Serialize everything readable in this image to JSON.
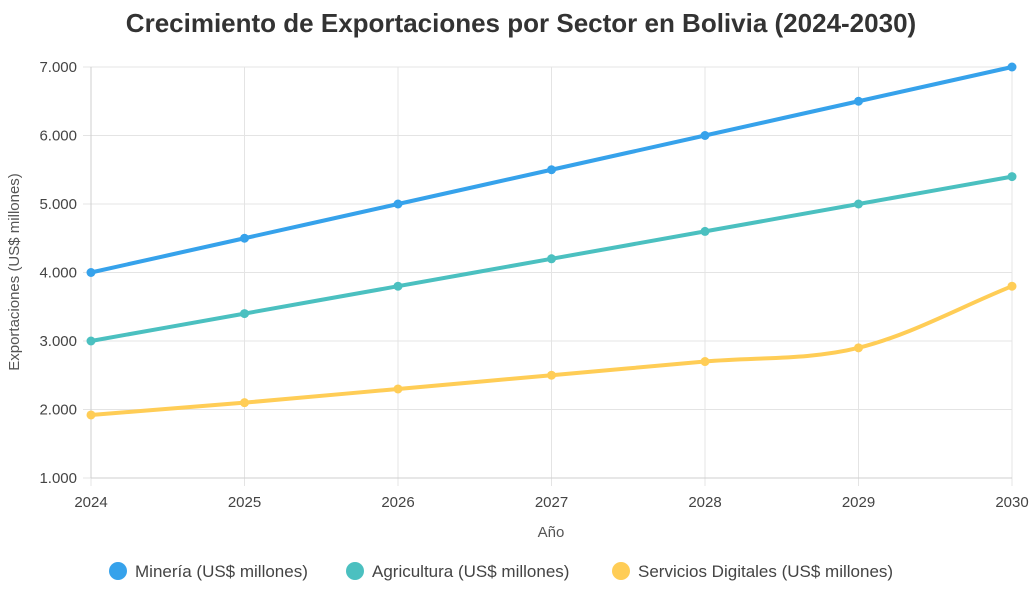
{
  "chart_data": {
    "type": "line",
    "title": "Crecimiento de Exportaciones por Sector en Bolivia (2024-2030)",
    "xlabel": "Año",
    "ylabel": "Exportaciones (US$ millones)",
    "x": [
      "2024",
      "2025",
      "2026",
      "2027",
      "2028",
      "2029",
      "2030"
    ],
    "ylim": [
      1000,
      7000
    ],
    "yticks": [
      1000,
      2000,
      3000,
      4000,
      5000,
      6000,
      7000
    ],
    "ytick_labels": [
      "1.000",
      "2.000",
      "3.000",
      "4.000",
      "5.000",
      "6.000",
      "7.000"
    ],
    "grid": true,
    "legend_position": "bottom",
    "series": [
      {
        "name": "Minería (US$ millones)",
        "color": "#36a2eb",
        "values": [
          4000,
          4500,
          5000,
          5500,
          6000,
          6500,
          7000
        ]
      },
      {
        "name": "Agricultura (US$ millones)",
        "color": "#4bc0c0",
        "values": [
          3000,
          3400,
          3800,
          4200,
          4600,
          5000,
          5400
        ]
      },
      {
        "name": "Servicios Digitales (US$ millones)",
        "color": "#ffcd56",
        "values": [
          1920,
          2100,
          2300,
          2500,
          2700,
          2900,
          3800
        ]
      }
    ]
  }
}
